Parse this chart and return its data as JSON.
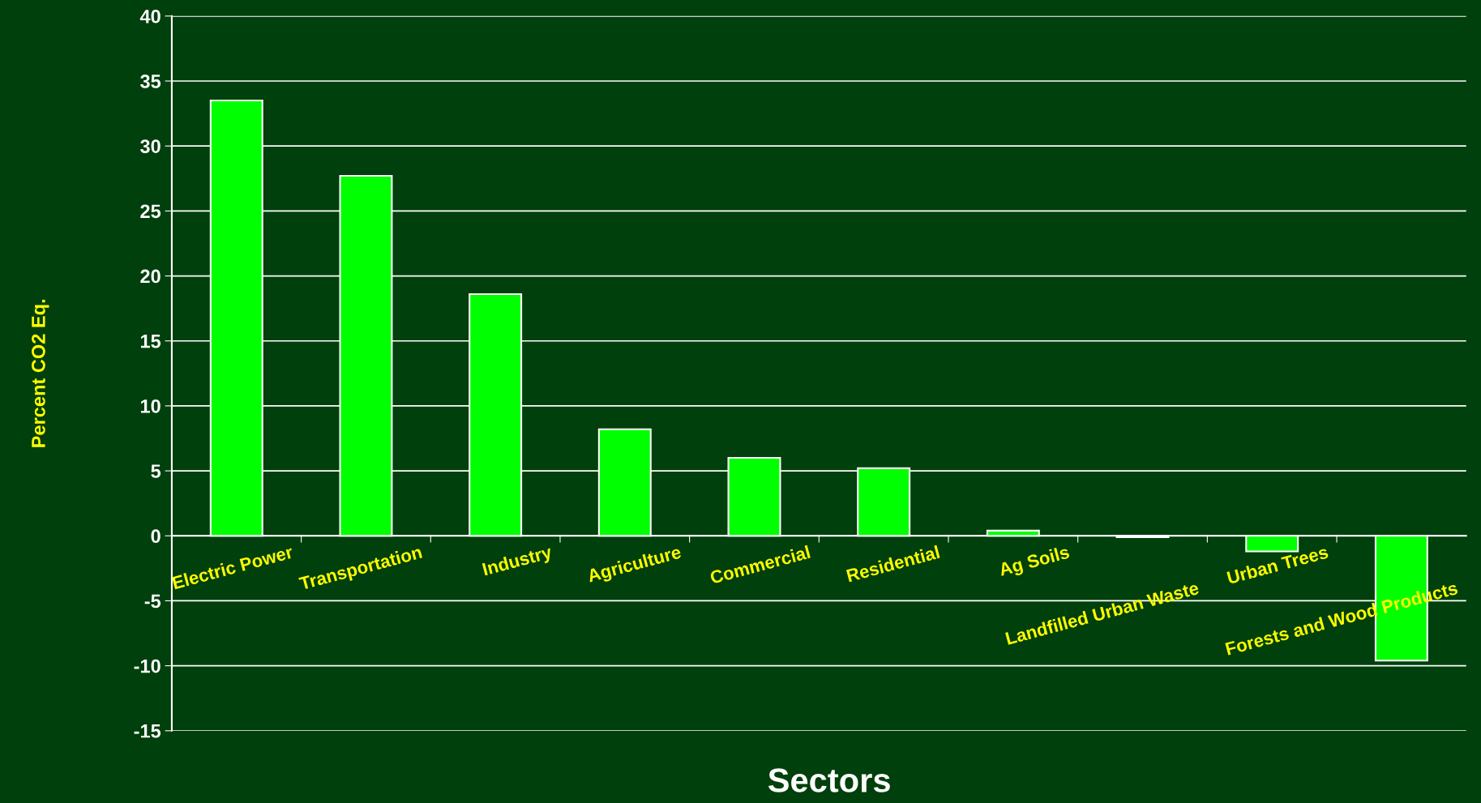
{
  "chart_data": {
    "type": "bar",
    "xlabel": "Sectors",
    "ylabel": "Percent CO2 Eq.",
    "categories": [
      "Electric Power",
      "Transportation",
      "Industry",
      "Agriculture",
      "Commercial",
      "Residential",
      "Ag Soils",
      "Landfilled Urban Waste",
      "Urban Trees",
      "Forests and Wood Products"
    ],
    "values": [
      33.5,
      27.7,
      18.6,
      8.2,
      6.0,
      5.2,
      0.4,
      -0.1,
      -1.2,
      -9.6
    ],
    "color": "#00ff00",
    "ylim": [
      -15,
      40
    ],
    "yticks": [
      -15,
      -10,
      -5,
      0,
      5,
      10,
      15,
      20,
      25,
      30,
      35,
      40
    ],
    "grid": "y"
  }
}
